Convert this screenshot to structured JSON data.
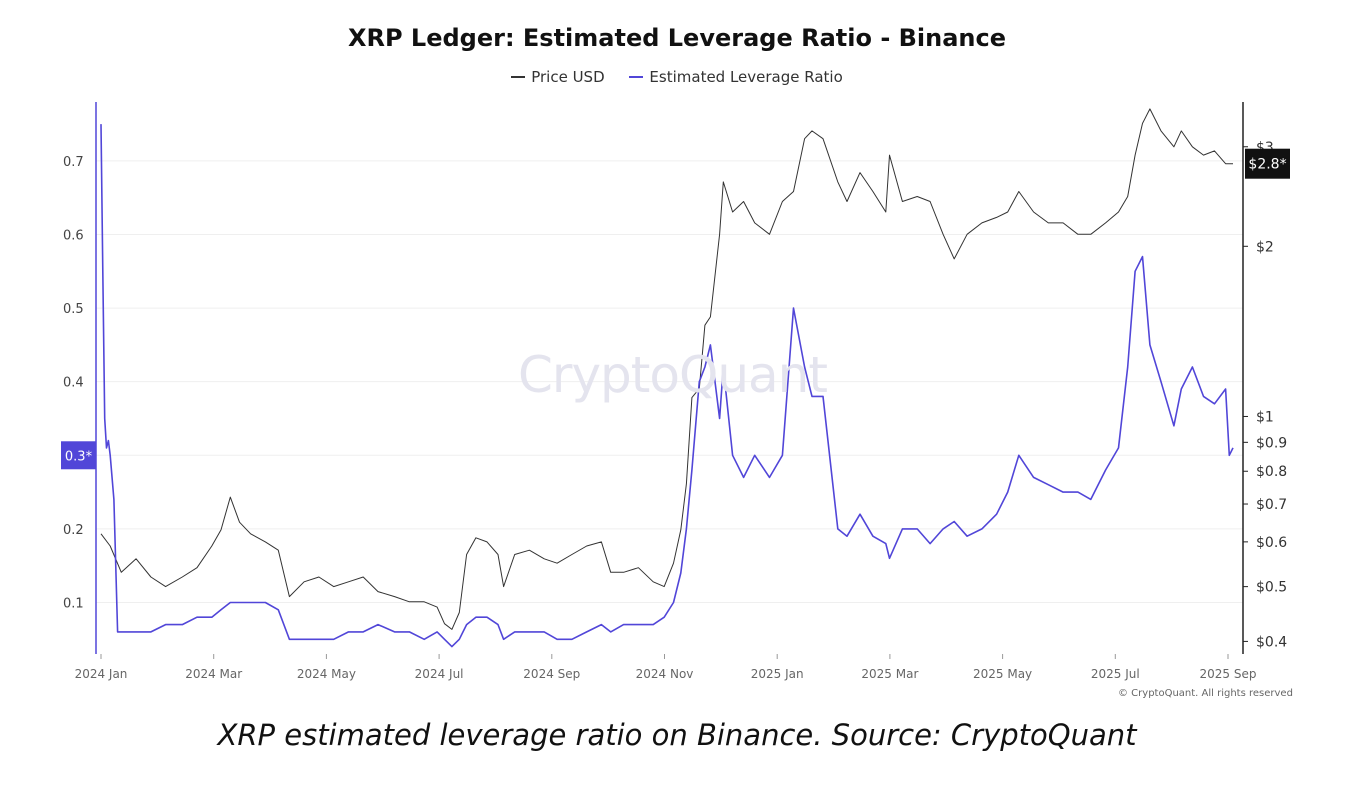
{
  "chart_data": {
    "type": "line",
    "title": "XRP Ledger: Estimated Leverage Ratio - Binance",
    "legend_position": "top-center",
    "grid": true,
    "x_ticks": [
      "2024 Jan",
      "2024 Mar",
      "2024 May",
      "2024 Jul",
      "2024 Sep",
      "2024 Nov",
      "2025 Jan",
      "2025 Mar",
      "2025 May",
      "2025 Jul",
      "2025 Sep"
    ],
    "y_left": {
      "ticks": [
        "0.1",
        "0.2",
        "0.3",
        "0.4",
        "0.5",
        "0.6",
        "0.7"
      ],
      "range": [
        0.03,
        0.78
      ],
      "current_label": "0.3*",
      "current_value": 0.3
    },
    "y_right": {
      "scale": "log",
      "ticks": [
        "$0.4",
        "$0.5",
        "$0.6",
        "$0.7",
        "$0.8",
        "$0.9",
        "$1",
        "$2",
        "$3"
      ],
      "tick_values": [
        0.4,
        0.5,
        0.6,
        0.7,
        0.8,
        0.9,
        1,
        2,
        3
      ],
      "range": [
        0.38,
        3.6
      ],
      "current_label": "$2.8*",
      "current_value": 2.8
    },
    "series": [
      {
        "name": "Price USD",
        "axis": "right",
        "color": "#333333",
        "x": [
          "2024-01-01",
          "2024-01-06",
          "2024-01-12",
          "2024-01-20",
          "2024-01-28",
          "2024-02-05",
          "2024-02-14",
          "2024-02-22",
          "2024-03-01",
          "2024-03-06",
          "2024-03-11",
          "2024-03-16",
          "2024-03-22",
          "2024-03-30",
          "2024-04-06",
          "2024-04-12",
          "2024-04-20",
          "2024-04-28",
          "2024-05-06",
          "2024-05-14",
          "2024-05-22",
          "2024-05-30",
          "2024-06-08",
          "2024-06-16",
          "2024-06-24",
          "2024-07-01",
          "2024-07-05",
          "2024-07-09",
          "2024-07-13",
          "2024-07-17",
          "2024-07-22",
          "2024-07-28",
          "2024-08-03",
          "2024-08-06",
          "2024-08-12",
          "2024-08-20",
          "2024-08-28",
          "2024-09-04",
          "2024-09-12",
          "2024-09-20",
          "2024-09-28",
          "2024-10-03",
          "2024-10-10",
          "2024-10-18",
          "2024-10-26",
          "2024-11-01",
          "2024-11-06",
          "2024-11-10",
          "2024-11-13",
          "2024-11-16",
          "2024-11-20",
          "2024-11-23",
          "2024-11-26",
          "2024-12-01",
          "2024-12-03",
          "2024-12-08",
          "2024-12-14",
          "2024-12-20",
          "2024-12-28",
          "2025-01-04",
          "2025-01-10",
          "2025-01-16",
          "2025-01-20",
          "2025-01-26",
          "2025-02-03",
          "2025-02-08",
          "2025-02-15",
          "2025-02-22",
          "2025-03-01",
          "2025-03-03",
          "2025-03-10",
          "2025-03-18",
          "2025-03-25",
          "2025-04-01",
          "2025-04-07",
          "2025-04-14",
          "2025-04-22",
          "2025-04-30",
          "2025-05-06",
          "2025-05-12",
          "2025-05-20",
          "2025-05-28",
          "2025-06-05",
          "2025-06-13",
          "2025-06-20",
          "2025-06-28",
          "2025-07-05",
          "2025-07-10",
          "2025-07-14",
          "2025-07-18",
          "2025-07-22",
          "2025-07-28",
          "2025-08-04",
          "2025-08-08",
          "2025-08-14",
          "2025-08-20",
          "2025-08-26",
          "2025-09-01",
          "2025-09-05"
        ],
        "values": [
          0.62,
          0.59,
          0.53,
          0.56,
          0.52,
          0.5,
          0.52,
          0.54,
          0.59,
          0.63,
          0.72,
          0.65,
          0.62,
          0.6,
          0.58,
          0.48,
          0.51,
          0.52,
          0.5,
          0.51,
          0.52,
          0.49,
          0.48,
          0.47,
          0.47,
          0.46,
          0.43,
          0.42,
          0.45,
          0.57,
          0.61,
          0.6,
          0.57,
          0.5,
          0.57,
          0.58,
          0.56,
          0.55,
          0.57,
          0.59,
          0.6,
          0.53,
          0.53,
          0.54,
          0.51,
          0.5,
          0.55,
          0.63,
          0.76,
          1.08,
          1.12,
          1.45,
          1.5,
          2.1,
          2.6,
          2.3,
          2.4,
          2.2,
          2.1,
          2.4,
          2.5,
          3.1,
          3.2,
          3.1,
          2.6,
          2.4,
          2.7,
          2.5,
          2.3,
          2.9,
          2.4,
          2.45,
          2.4,
          2.1,
          1.9,
          2.1,
          2.2,
          2.25,
          2.3,
          2.5,
          2.3,
          2.2,
          2.2,
          2.1,
          2.1,
          2.2,
          2.3,
          2.45,
          2.9,
          3.3,
          3.5,
          3.2,
          3.0,
          3.2,
          3.0,
          2.9,
          2.95,
          2.8,
          2.8
        ]
      },
      {
        "name": "Estimated Leverage Ratio",
        "axis": "left",
        "color": "#5146d8",
        "x": [
          "2024-01-01",
          "2024-01-02",
          "2024-01-03",
          "2024-01-04",
          "2024-01-05",
          "2024-01-06",
          "2024-01-08",
          "2024-01-10",
          "2024-01-20",
          "2024-01-28",
          "2024-02-05",
          "2024-02-14",
          "2024-02-22",
          "2024-03-01",
          "2024-03-06",
          "2024-03-11",
          "2024-03-16",
          "2024-03-22",
          "2024-03-30",
          "2024-04-06",
          "2024-04-12",
          "2024-04-20",
          "2024-04-28",
          "2024-05-06",
          "2024-05-14",
          "2024-05-22",
          "2024-05-30",
          "2024-06-08",
          "2024-06-16",
          "2024-06-24",
          "2024-07-01",
          "2024-07-05",
          "2024-07-09",
          "2024-07-13",
          "2024-07-17",
          "2024-07-22",
          "2024-07-28",
          "2024-08-03",
          "2024-08-06",
          "2024-08-12",
          "2024-08-20",
          "2024-08-28",
          "2024-09-04",
          "2024-09-12",
          "2024-09-20",
          "2024-09-28",
          "2024-10-03",
          "2024-10-10",
          "2024-10-18",
          "2024-10-26",
          "2024-11-01",
          "2024-11-06",
          "2024-11-10",
          "2024-11-13",
          "2024-11-16",
          "2024-11-20",
          "2024-11-23",
          "2024-11-26",
          "2024-12-01",
          "2024-12-03",
          "2024-12-08",
          "2024-12-14",
          "2024-12-20",
          "2024-12-28",
          "2025-01-04",
          "2025-01-10",
          "2025-01-16",
          "2025-01-20",
          "2025-01-26",
          "2025-02-03",
          "2025-02-08",
          "2025-02-15",
          "2025-02-22",
          "2025-03-01",
          "2025-03-03",
          "2025-03-10",
          "2025-03-18",
          "2025-03-25",
          "2025-04-01",
          "2025-04-07",
          "2025-04-14",
          "2025-04-22",
          "2025-04-30",
          "2025-05-06",
          "2025-05-12",
          "2025-05-20",
          "2025-05-28",
          "2025-06-05",
          "2025-06-13",
          "2025-06-20",
          "2025-06-28",
          "2025-07-05",
          "2025-07-10",
          "2025-07-14",
          "2025-07-18",
          "2025-07-22",
          "2025-07-28",
          "2025-08-04",
          "2025-08-08",
          "2025-08-14",
          "2025-08-20",
          "2025-08-26",
          "2025-09-01",
          "2025-09-03",
          "2025-09-05"
        ],
        "values": [
          0.75,
          0.55,
          0.35,
          0.31,
          0.32,
          0.3,
          0.24,
          0.06,
          0.06,
          0.06,
          0.07,
          0.07,
          0.08,
          0.08,
          0.09,
          0.1,
          0.1,
          0.1,
          0.1,
          0.09,
          0.05,
          0.05,
          0.05,
          0.05,
          0.06,
          0.06,
          0.07,
          0.06,
          0.06,
          0.05,
          0.06,
          0.05,
          0.04,
          0.05,
          0.07,
          0.08,
          0.08,
          0.07,
          0.05,
          0.06,
          0.06,
          0.06,
          0.05,
          0.05,
          0.06,
          0.07,
          0.06,
          0.07,
          0.07,
          0.07,
          0.08,
          0.1,
          0.14,
          0.2,
          0.28,
          0.4,
          0.42,
          0.45,
          0.35,
          0.42,
          0.3,
          0.27,
          0.3,
          0.27,
          0.3,
          0.5,
          0.42,
          0.38,
          0.38,
          0.2,
          0.19,
          0.22,
          0.19,
          0.18,
          0.16,
          0.2,
          0.2,
          0.18,
          0.2,
          0.21,
          0.19,
          0.2,
          0.22,
          0.25,
          0.3,
          0.27,
          0.26,
          0.25,
          0.25,
          0.24,
          0.28,
          0.31,
          0.42,
          0.55,
          0.57,
          0.45,
          0.4,
          0.34,
          0.39,
          0.42,
          0.38,
          0.37,
          0.39,
          0.3,
          0.31
        ]
      }
    ]
  },
  "watermark": "CryptoQuant",
  "copyright": "© CryptoQuant. All rights reserved",
  "caption": "XRP estimated leverage ratio on Binance. Source: CryptoQuant"
}
